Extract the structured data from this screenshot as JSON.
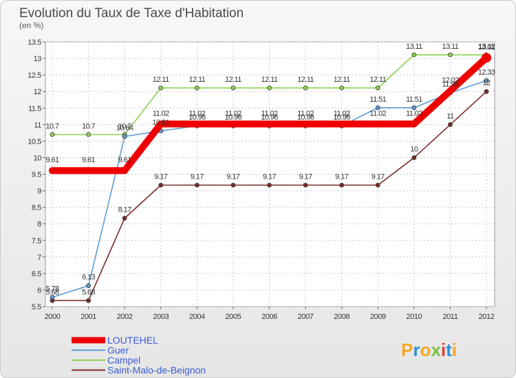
{
  "chart_data": {
    "type": "line",
    "title": "Evolution du Taux de Taxe d'Habitation",
    "subtitle": "(en %)",
    "x": [
      "2000",
      "2001",
      "2002",
      "2003",
      "2004",
      "2005",
      "2006",
      "2007",
      "2008",
      "2009",
      "2010",
      "2011",
      "2012"
    ],
    "ylim": [
      5.5,
      13.5
    ],
    "yticks": [
      "5.5",
      "6",
      "6.5",
      "7",
      "7.5",
      "8",
      "8.5",
      "9",
      "9.5",
      "10",
      "10.5",
      "11",
      "11.5",
      "12",
      "12.5",
      "13",
      "13.5"
    ],
    "series": [
      {
        "name": "LOUTEHEL",
        "color": "#ee0000",
        "values": [
          9.61,
          9.61,
          9.61,
          11.02,
          11.02,
          11.02,
          11.02,
          11.02,
          11.02,
          11.02,
          11.02,
          12.02,
          13.02
        ],
        "labels": [
          "9.61",
          "9.61",
          "9.61",
          "11.02",
          "11.02",
          "11.02",
          "11.02",
          "11.02",
          "11.02",
          "11.02",
          "11.02",
          "12.02",
          "13.02"
        ]
      },
      {
        "name": "Guer",
        "color": "#5b9bd5",
        "values": [
          5.78,
          6.13,
          10.64,
          10.81,
          10.96,
          10.96,
          10.96,
          10.96,
          10.96,
          11.51,
          11.51,
          11.96,
          12.33
        ],
        "labels": [
          "5.78",
          "6.13",
          "10.64",
          "10.81",
          "10.96",
          "10.96",
          "10.96",
          "10.96",
          "10.96",
          "11.51",
          "11.51",
          "11.96",
          "12.33"
        ]
      },
      {
        "name": "Campel",
        "color": "#8ed151",
        "values": [
          10.7,
          10.7,
          10.7,
          12.11,
          12.11,
          12.11,
          12.11,
          12.11,
          12.11,
          12.11,
          13.11,
          13.11,
          13.11
        ],
        "labels": [
          "10.7",
          "10.7",
          "10.7",
          "12.11",
          "12.11",
          "12.11",
          "12.11",
          "12.11",
          "12.11",
          "12.11",
          "13.11",
          "13.11",
          "13.11"
        ]
      },
      {
        "name": "Saint-Malo-de-Beignon",
        "color": "#7b2a2a",
        "values": [
          5.68,
          5.68,
          8.17,
          9.17,
          9.17,
          9.17,
          9.17,
          9.17,
          9.17,
          9.17,
          10,
          11,
          12
        ],
        "labels": [
          "5.68",
          "5.68",
          "8.17",
          "9.17",
          "9.17",
          "9.17",
          "9.17",
          "9.17",
          "9.17",
          "9.17",
          "10",
          "11",
          "12"
        ]
      }
    ]
  },
  "logo": {
    "text": "Proxiti",
    "colors": [
      "#f5a623",
      "#2e8fd6",
      "#f5a623",
      "#7cc242",
      "#d93b3b",
      "#2e8fd6",
      "#f5a623"
    ]
  }
}
